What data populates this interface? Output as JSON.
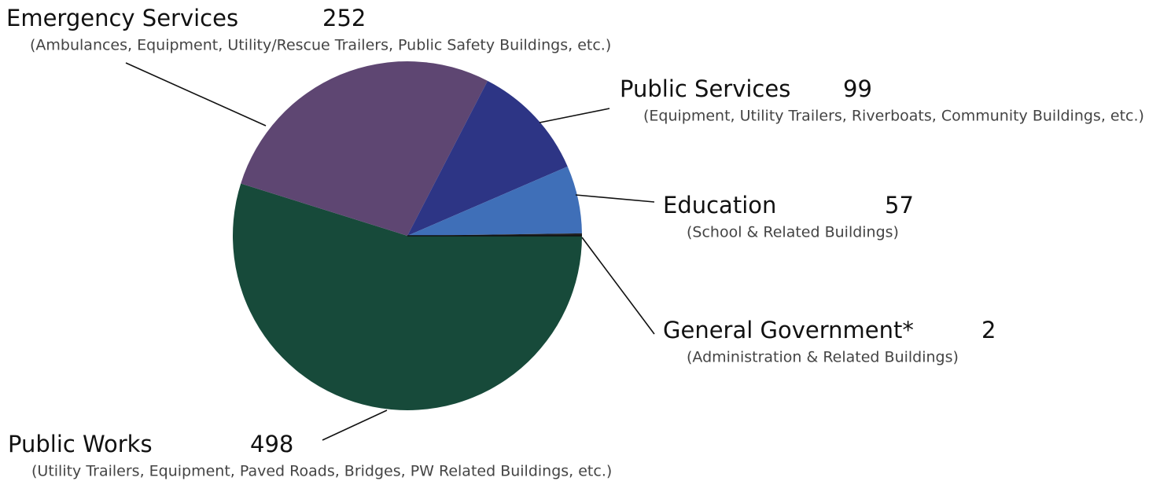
{
  "chart_data": {
    "type": "pie",
    "categories": [
      "Public Works",
      "Emergency Services",
      "Public Services",
      "Education",
      "General Government*"
    ],
    "values": [
      498,
      252,
      99,
      57,
      2
    ],
    "descriptions": [
      "(Utility Trailers, Equipment, Paved Roads, Bridges, PW Related Buildings, etc.)",
      "(Ambulances, Equipment, Utility/Rescue Trailers, Public Safety Buildings, etc.)",
      "(Equipment, Utility Trailers, Riverboats, Community Buildings, etc.)",
      "(School & Related Buildings)",
      "(Administration & Related Buildings)"
    ],
    "colors": [
      "#174a3a",
      "#5e4672",
      "#2d3585",
      "#3f6fb8",
      "#222222"
    ]
  }
}
